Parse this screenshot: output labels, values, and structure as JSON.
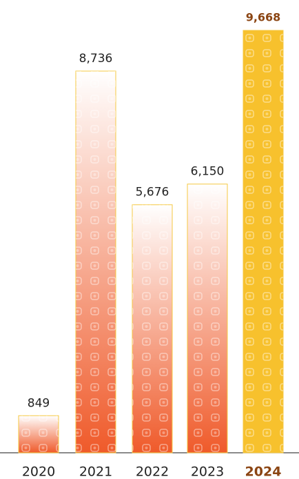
{
  "chart_data": {
    "type": "bar",
    "categories": [
      "2020",
      "2021",
      "2022",
      "2023",
      "2024"
    ],
    "values": [
      849,
      8736,
      5676,
      6150,
      9668
    ],
    "value_labels": [
      "849",
      "8,736",
      "5,676",
      "6,150",
      "9,668"
    ],
    "colors": [
      "#ef5a2a",
      "#ef5a2a",
      "#ef5a2a",
      "#ef5a2a",
      "#f7c12d"
    ],
    "border_color": "#f5c842",
    "highlight_index": 4,
    "highlight_text_color": "#8b4513",
    "ylim": [
      0,
      9668
    ]
  }
}
